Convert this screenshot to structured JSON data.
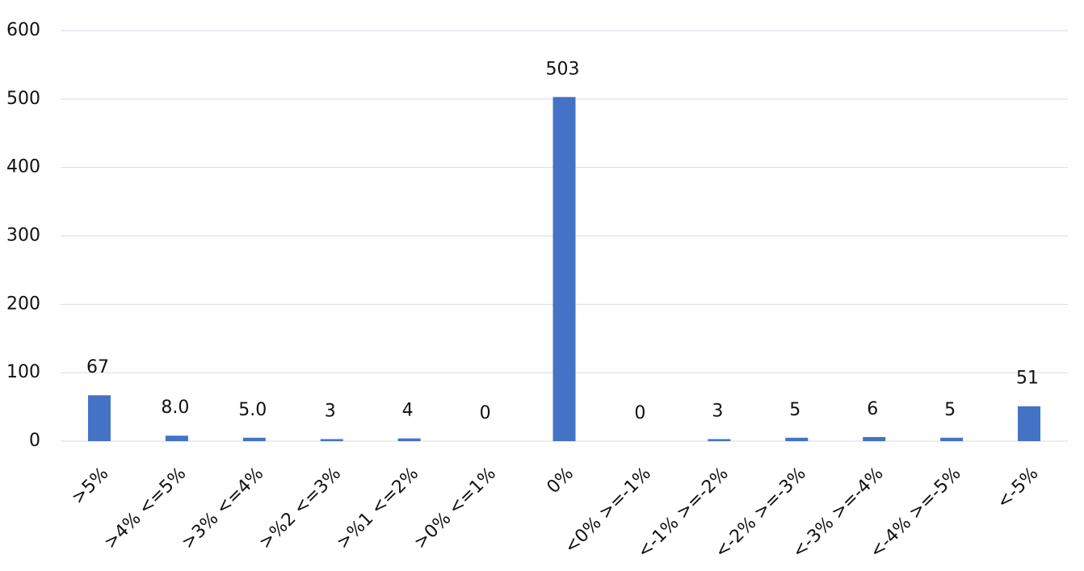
{
  "chart_data": {
    "type": "bar",
    "categories": [
      ">5%",
      ">4% <=5%",
      ">3% <=4%",
      ">%2 <=3%",
      ">%1 <=2%",
      ">0% <=1%",
      "0%",
      "<0% >=-1%",
      "<-1% >=-2%",
      "<-2% >=-3%",
      "<-3% >=-4%",
      "<-4% >=-5%",
      "<-5%"
    ],
    "values": [
      67,
      8,
      5,
      3,
      4,
      0,
      503,
      0,
      3,
      5,
      6,
      5,
      51
    ],
    "value_labels": [
      "67",
      "8.0",
      "5.0",
      "3",
      "4",
      "0",
      "503",
      "0",
      "3",
      "5",
      "6",
      "5",
      "51"
    ],
    "color": "#4472c4",
    "ylim": [
      0,
      600
    ],
    "yticks": [
      0,
      100,
      200,
      300,
      400,
      500,
      600
    ],
    "grid": true
  }
}
